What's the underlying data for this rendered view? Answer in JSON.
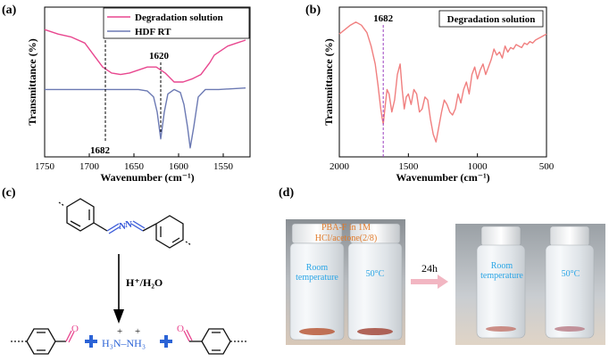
{
  "panels": {
    "a": {
      "label": "(a)",
      "ylabel": "Transmittance (%)",
      "xlabel": "Wavenumber (cm⁻¹)",
      "legend": [
        {
          "name": "Degradation solution",
          "color": "#e8478f"
        },
        {
          "name": "HDF RT",
          "color": "#6b79b3"
        }
      ],
      "markers": [
        {
          "label": "1682",
          "x": 1682
        },
        {
          "label": "1620",
          "x": 1620
        }
      ]
    },
    "b": {
      "label": "(b)",
      "ylabel": "Transmittance (%)",
      "xlabel": "Wavenumber (cm⁻¹)",
      "legend": [
        {
          "name": "Degradation solution",
          "color": "#f07f7f"
        }
      ],
      "markers": [
        {
          "label": "1682",
          "x": 1682,
          "color": "#9b3fc0"
        }
      ]
    },
    "c": {
      "label": "(c)",
      "reagent": "H⁺/H₂O",
      "hydrazinium": "H₃N–NH₃",
      "charges": [
        "+",
        "+"
      ],
      "colors": {
        "nitrogen": "#3a5bd9",
        "oxygen": "#e8478f",
        "plus": "#2b63d6"
      }
    },
    "d": {
      "label": "(d)",
      "time": "24h",
      "sample_label": "PBA-F in 1M HCl/acetone(2/8)",
      "vial_labels": [
        "Room temperature",
        "50°C",
        "Room temperature",
        "50°C"
      ]
    }
  },
  "chart_data": [
    {
      "type": "line",
      "panel": "a",
      "xlim": [
        1750,
        1520
      ],
      "xticks": [
        1750,
        1700,
        1650,
        1600,
        1550
      ],
      "xlabel": "Wavenumber (cm⁻¹)",
      "ylabel": "Transmittance (%)",
      "yticks_shown": false,
      "series": [
        {
          "name": "Degradation solution",
          "color": "#e8478f",
          "x": [
            1750,
            1735,
            1720,
            1705,
            1695,
            1685,
            1675,
            1665,
            1655,
            1645,
            1635,
            1625,
            1615,
            1605,
            1595,
            1585,
            1575,
            1565,
            1560,
            1555,
            1545,
            1535,
            1525
          ],
          "y": [
            0.85,
            0.82,
            0.8,
            0.76,
            0.68,
            0.6,
            0.56,
            0.55,
            0.56,
            0.58,
            0.6,
            0.6,
            0.56,
            0.5,
            0.5,
            0.52,
            0.55,
            0.63,
            0.68,
            0.7,
            0.74,
            0.76,
            0.78
          ]
        },
        {
          "name": "HDF RT",
          "color": "#6b79b3",
          "x": [
            1750,
            1700,
            1660,
            1645,
            1635,
            1628,
            1624,
            1620,
            1616,
            1612,
            1605,
            1598,
            1594,
            1590,
            1587,
            1583,
            1578,
            1570,
            1555,
            1525
          ],
          "y": [
            0.45,
            0.45,
            0.45,
            0.45,
            0.44,
            0.4,
            0.3,
            0.12,
            0.3,
            0.42,
            0.45,
            0.43,
            0.35,
            0.2,
            0.06,
            0.2,
            0.4,
            0.45,
            0.45,
            0.46
          ]
        }
      ]
    },
    {
      "type": "line",
      "panel": "b",
      "xlim": [
        2000,
        500
      ],
      "xticks": [
        2000,
        1500,
        1000,
        500
      ],
      "xlabel": "Wavenumber (cm⁻¹)",
      "ylabel": "Transmittance (%)",
      "yticks_shown": false,
      "series": [
        {
          "name": "Degradation solution",
          "color": "#f07f7f",
          "x": [
            2000,
            1960,
            1920,
            1880,
            1840,
            1800,
            1770,
            1740,
            1720,
            1700,
            1690,
            1682,
            1670,
            1655,
            1640,
            1620,
            1600,
            1580,
            1560,
            1545,
            1530,
            1515,
            1500,
            1480,
            1460,
            1440,
            1420,
            1400,
            1380,
            1360,
            1340,
            1320,
            1300,
            1280,
            1260,
            1240,
            1220,
            1200,
            1180,
            1160,
            1140,
            1120,
            1100,
            1080,
            1060,
            1040,
            1020,
            1000,
            980,
            960,
            940,
            920,
            900,
            880,
            860,
            840,
            820,
            800,
            780,
            760,
            740,
            720,
            700,
            680,
            660,
            640,
            620,
            600,
            580,
            560,
            540,
            520,
            500
          ],
          "y": [
            0.82,
            0.85,
            0.88,
            0.9,
            0.88,
            0.83,
            0.74,
            0.62,
            0.48,
            0.32,
            0.26,
            0.22,
            0.32,
            0.45,
            0.42,
            0.3,
            0.38,
            0.55,
            0.62,
            0.45,
            0.32,
            0.4,
            0.42,
            0.35,
            0.45,
            0.42,
            0.3,
            0.32,
            0.4,
            0.38,
            0.25,
            0.15,
            0.1,
            0.2,
            0.3,
            0.38,
            0.35,
            0.3,
            0.28,
            0.32,
            0.42,
            0.36,
            0.45,
            0.5,
            0.42,
            0.55,
            0.6,
            0.52,
            0.58,
            0.62,
            0.55,
            0.6,
            0.65,
            0.72,
            0.68,
            0.7,
            0.66,
            0.74,
            0.7,
            0.73,
            0.72,
            0.75,
            0.74,
            0.73,
            0.76,
            0.75,
            0.77,
            0.76,
            0.78,
            0.79,
            0.8,
            0.81,
            0.82
          ]
        }
      ]
    }
  ]
}
